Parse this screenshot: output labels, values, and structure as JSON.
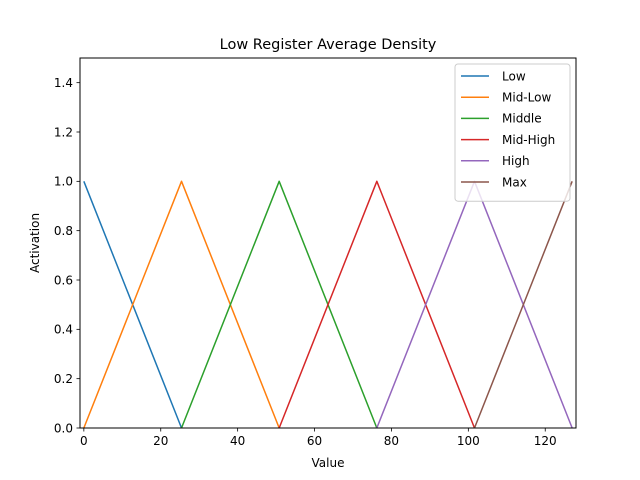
{
  "chart_data": {
    "type": "line",
    "title": "Low Register Average Density",
    "xlabel": "Value",
    "ylabel": "Activation",
    "xlim": [
      -1,
      128
    ],
    "ylim": [
      0,
      1.5
    ],
    "x_ticks": [
      0,
      20,
      40,
      60,
      80,
      100,
      120
    ],
    "x_tick_labels": [
      "0",
      "20",
      "40",
      "60",
      "80",
      "100",
      "120"
    ],
    "y_ticks": [
      0.0,
      0.2,
      0.4,
      0.6,
      0.8,
      1.0,
      1.2,
      1.4
    ],
    "y_tick_labels": [
      "0.0",
      "0.2",
      "0.4",
      "0.6",
      "0.8",
      "1.0",
      "1.2",
      "1.4"
    ],
    "grid": false,
    "legend_position": "top-right",
    "series": [
      {
        "name": "Low",
        "color": "#1f77b4",
        "x": [
          0,
          25.4
        ],
        "y": [
          1.0,
          0.0
        ]
      },
      {
        "name": "Mid-Low",
        "color": "#ff7f0e",
        "x": [
          0,
          25.4,
          50.8
        ],
        "y": [
          0.0,
          1.0,
          0.0
        ]
      },
      {
        "name": "Middle",
        "color": "#2ca02c",
        "x": [
          25.4,
          50.8,
          76.2
        ],
        "y": [
          0.0,
          1.0,
          0.0
        ]
      },
      {
        "name": "Mid-High",
        "color": "#d62728",
        "x": [
          50.8,
          76.2,
          101.6
        ],
        "y": [
          0.0,
          1.0,
          0.0
        ]
      },
      {
        "name": "High",
        "color": "#9467bd",
        "x": [
          76.2,
          101.6,
          127
        ],
        "y": [
          0.0,
          1.0,
          0.0
        ]
      },
      {
        "name": "Max",
        "color": "#8c564b",
        "x": [
          101.6,
          127
        ],
        "y": [
          0.0,
          1.0
        ]
      }
    ]
  }
}
